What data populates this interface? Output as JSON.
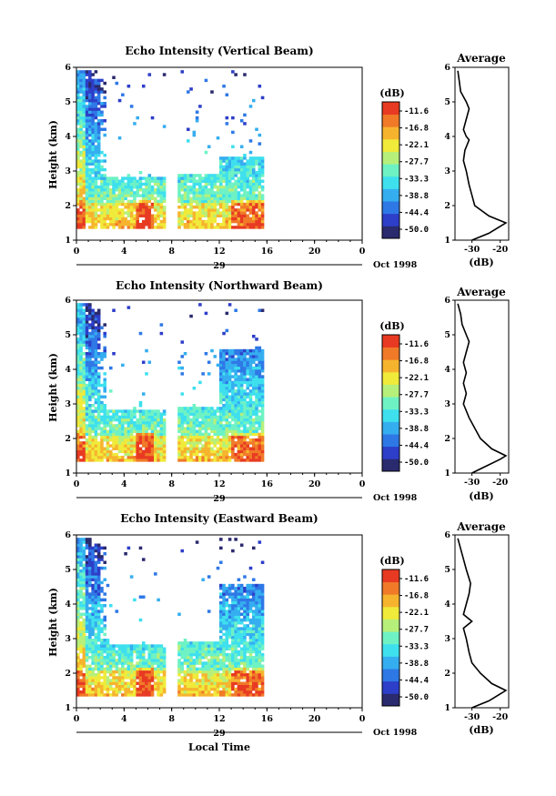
{
  "figure": {
    "xlabel": "Local Time",
    "date_label": "Oct 1998",
    "day_label": "29",
    "cbar_unit": "(dB)",
    "avg_title": "Average",
    "avg_xlabel": "(dB)"
  },
  "colormap": [
    "#2a2a6e",
    "#2d3ec8",
    "#2e78e6",
    "#35aef0",
    "#3ee0ee",
    "#6ef2c4",
    "#b6f07a",
    "#f0ea3a",
    "#f6b42e",
    "#f07a28",
    "#e83a22"
  ],
  "chart_data": [
    {
      "type": "heatmap",
      "title": "Echo Intensity (Vertical Beam)",
      "ylabel": "Height (km)",
      "xlabel": "",
      "x_ticks": [
        "0",
        "4",
        "8",
        "12",
        "16",
        "20",
        "0"
      ],
      "y_ticks": [
        "1",
        "2",
        "3",
        "4",
        "5",
        "6"
      ],
      "xlim": [
        0,
        24
      ],
      "ylim": [
        1,
        6
      ],
      "data_coverage_hours": [
        [
          0,
          7.6
        ],
        [
          8.4,
          15.8
        ]
      ],
      "colorbar_ticks": [
        "-11.6",
        "-16.8",
        "-22.1",
        "-27.7",
        "-33.3",
        "-38.8",
        "-44.4",
        "-50.0"
      ],
      "colorbar_range_db": [
        -50.0,
        -11.6
      ],
      "average_profile": {
        "xlabel": "(dB)",
        "x_ticks": [
          "-30",
          "-20"
        ],
        "xlim": [
          -36,
          -17
        ],
        "height_km": [
          1.0,
          1.2,
          1.4,
          1.5,
          1.7,
          2.0,
          2.3,
          2.6,
          3.0,
          3.3,
          3.6,
          3.9,
          4.0,
          4.2,
          4.5,
          4.8,
          5.0,
          5.3,
          5.6,
          5.9
        ],
        "avg_db": [
          -30,
          -24,
          -20,
          -18,
          -24,
          -29,
          -30,
          -31,
          -32,
          -33,
          -32.5,
          -31,
          -32,
          -33,
          -32,
          -31,
          -32,
          -34,
          -34.5,
          -35
        ]
      }
    },
    {
      "type": "heatmap",
      "title": "Echo Intensity (Northward Beam)",
      "ylabel": "Height (km)",
      "xlabel": "",
      "x_ticks": [
        "0",
        "4",
        "8",
        "12",
        "16",
        "20",
        "0"
      ],
      "y_ticks": [
        "1",
        "2",
        "3",
        "4",
        "5",
        "6"
      ],
      "xlim": [
        0,
        24
      ],
      "ylim": [
        1,
        6
      ],
      "data_coverage_hours": [
        [
          0,
          7.6
        ],
        [
          8.4,
          15.8
        ]
      ],
      "colorbar_ticks": [
        "-11.6",
        "-16.8",
        "-22.1",
        "-27.7",
        "-33.3",
        "-38.8",
        "-44.4",
        "-50.0"
      ],
      "colorbar_range_db": [
        -50.0,
        -11.6
      ],
      "average_profile": {
        "xlabel": "(dB)",
        "x_ticks": [
          "-30",
          "-20"
        ],
        "xlim": [
          -36,
          -17
        ],
        "height_km": [
          1.0,
          1.2,
          1.4,
          1.5,
          1.7,
          2.0,
          2.3,
          2.6,
          3.0,
          3.3,
          3.6,
          3.9,
          4.2,
          4.5,
          4.8,
          5.0,
          5.3,
          5.6,
          5.9
        ],
        "avg_db": [
          -30,
          -25,
          -20,
          -18,
          -23,
          -27,
          -29,
          -31,
          -33,
          -32,
          -33,
          -32,
          -33,
          -32,
          -31,
          -32,
          -33.5,
          -34,
          -35
        ]
      }
    },
    {
      "type": "heatmap",
      "title": "Echo Intensity (Eastward Beam)",
      "ylabel": "Height (km)",
      "xlabel": "Local Time",
      "x_ticks": [
        "0",
        "4",
        "8",
        "12",
        "16",
        "20",
        "0"
      ],
      "y_ticks": [
        "1",
        "2",
        "3",
        "4",
        "5",
        "6"
      ],
      "xlim": [
        0,
        24
      ],
      "ylim": [
        1,
        6
      ],
      "data_coverage_hours": [
        [
          0,
          7.6
        ],
        [
          8.4,
          15.8
        ]
      ],
      "colorbar_ticks": [
        "-11.6",
        "-16.8",
        "-22.1",
        "-27.7",
        "-33.3",
        "-38.8",
        "-44.4",
        "-50.0"
      ],
      "colorbar_range_db": [
        -50.0,
        -11.6
      ],
      "average_profile": {
        "xlabel": "(dB)",
        "x_ticks": [
          "-30",
          "-20"
        ],
        "xlim": [
          -36,
          -17
        ],
        "height_km": [
          1.0,
          1.2,
          1.4,
          1.5,
          1.7,
          2.0,
          2.3,
          2.6,
          3.0,
          3.3,
          3.5,
          3.7,
          4.0,
          4.3,
          4.6,
          5.0,
          5.3,
          5.6,
          5.9
        ],
        "avg_db": [
          -30,
          -24,
          -20,
          -18,
          -23,
          -27,
          -30,
          -31,
          -32,
          -33,
          -30,
          -33,
          -32,
          -31,
          -30.5,
          -32,
          -33,
          -34,
          -35
        ]
      }
    }
  ]
}
